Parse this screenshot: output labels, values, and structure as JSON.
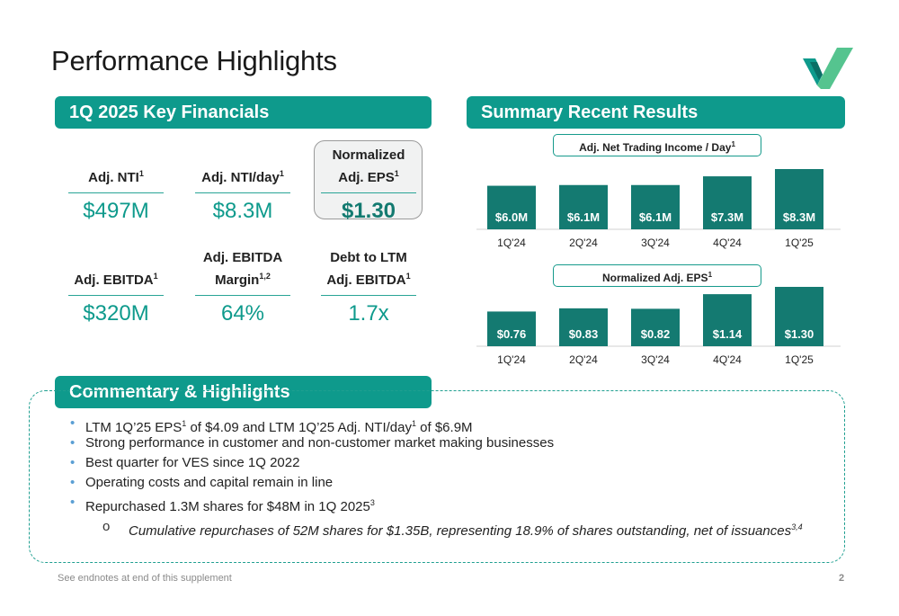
{
  "title": "Performance Highlights",
  "brand_colors": {
    "teal": "#0e9a8c",
    "bar": "#147a71"
  },
  "logo": {
    "icon": "virtu-check-logo-icon"
  },
  "sections": {
    "key_financials": "1Q 2025 Key Financials",
    "summary": "Summary Recent Results",
    "commentary": "Commentary & Highlights"
  },
  "kpis": [
    {
      "label": "Adj. NTI",
      "sup": "1",
      "value": "$497M"
    },
    {
      "label": "Adj. NTI/day",
      "sup": "1",
      "value": "$8.3M"
    },
    {
      "label_line1": "Normalized",
      "label_line2": "Adj. EPS",
      "sup": "1",
      "value": "$1.30"
    },
    {
      "label": "Adj. EBITDA",
      "sup": "1",
      "value": "$320M"
    },
    {
      "label_line1": "Adj. EBITDA",
      "label_line2": "Margin",
      "sup": "1,2",
      "value": "64%"
    },
    {
      "label_line1": "Debt to LTM",
      "label_line2": "Adj. EBITDA",
      "sup": "1",
      "value": "1.7x"
    }
  ],
  "chart_data": [
    {
      "type": "bar",
      "title": "Adj. Net Trading Income / Day",
      "title_sup": "1",
      "categories": [
        "1Q'24",
        "2Q'24",
        "3Q'24",
        "4Q'24",
        "1Q'25"
      ],
      "values": [
        6.0,
        6.1,
        6.1,
        7.3,
        8.3
      ],
      "data_labels": [
        "$6.0M",
        "$6.1M",
        "$6.1M",
        "$7.3M",
        "$8.3M"
      ],
      "ylim": [
        0,
        8.3
      ]
    },
    {
      "type": "bar",
      "title": "Normalized Adj. EPS",
      "title_sup": "1",
      "categories": [
        "1Q'24",
        "2Q'24",
        "3Q'24",
        "4Q'24",
        "1Q'25"
      ],
      "values": [
        0.76,
        0.83,
        0.82,
        1.14,
        1.3
      ],
      "data_labels": [
        "$0.76",
        "$0.83",
        "$0.82",
        "$1.14",
        "$1.30"
      ],
      "ylim": [
        0,
        1.3
      ]
    }
  ],
  "commentary": {
    "bullets": [
      {
        "a": "LTM 1Q’25 EPS",
        "s1": "1",
        "b": " of $4.09 and LTM 1Q’25 Adj. NTI/day",
        "s2": "1",
        "c": " of $6.9M"
      },
      {
        "a": "Strong performance in customer and non-customer market making businesses"
      },
      {
        "a": "Best quarter for VES since 1Q 2022"
      },
      {
        "a": "Operating costs and capital remain in line"
      },
      {
        "a": "Repurchased 1.3M shares for $48M in 1Q 2025",
        "s1": "3"
      }
    ],
    "bullet_marker": "•",
    "sub_marker": "o",
    "sub_bullet": "Cumulative repurchases of 52M shares for $1.35B, representing 18.9% of shares outstanding, net of issuances",
    "sub_bullet_sup": "3,4"
  },
  "footer": {
    "note": "See endnotes at end of this supplement",
    "page": "2"
  }
}
